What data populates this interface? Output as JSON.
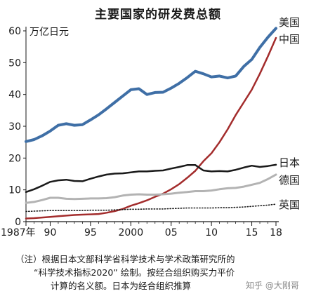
{
  "title": "主要国家的研发费总额",
  "note": {
    "line1": "（注）根据日本文部科学省科学技术与学术政策研究所的",
    "line2": "“科学技术指标2020” 绘制。按经合组织购买力平价",
    "line3": "计算的名义额。日本为经合组织推算"
  },
  "watermark": "知乎 @大刚哥",
  "chart_data": {
    "type": "line",
    "title": "主要国家的研发费总额",
    "ylabel": "万亿日元",
    "xlim": [
      1987,
      2018
    ],
    "ylim": [
      0,
      60
    ],
    "yticks": [
      0,
      10,
      20,
      30,
      40,
      50,
      60
    ],
    "xticks": [
      {
        "value": 1987,
        "label": "1987年"
      },
      {
        "value": 1990,
        "label": "90"
      },
      {
        "value": 1995,
        "label": "95"
      },
      {
        "value": 2000,
        "label": "2000"
      },
      {
        "value": 2005,
        "label": "05"
      },
      {
        "value": 2010,
        "label": "10"
      },
      {
        "value": 2015,
        "label": "15"
      },
      {
        "value": 2018,
        "label": "18"
      }
    ],
    "grid": false,
    "x": [
      1987,
      1988,
      1989,
      1990,
      1991,
      1992,
      1993,
      1994,
      1995,
      1996,
      1997,
      1998,
      1999,
      2000,
      2001,
      2002,
      2003,
      2004,
      2005,
      2006,
      2007,
      2008,
      2009,
      2010,
      2011,
      2012,
      2013,
      2014,
      2015,
      2016,
      2017,
      2018
    ],
    "series": [
      {
        "name": "美国",
        "color": "#3f6fa6",
        "style": "solid",
        "width": 4,
        "values": [
          25.2,
          25.8,
          27,
          28.5,
          30.3,
          30.8,
          30.3,
          30.5,
          32,
          33.6,
          35.5,
          37.5,
          39.5,
          41.5,
          41.8,
          40,
          40.6,
          40.7,
          42,
          43.5,
          45.3,
          47.3,
          46.5,
          45.5,
          45.8,
          45.2,
          45.8,
          48.8,
          51,
          54.8,
          58,
          60.8
        ]
      },
      {
        "name": "中国",
        "color": "#a32c2c",
        "style": "solid",
        "width": 2.5,
        "values": [
          1,
          1.1,
          1.3,
          1.5,
          1.7,
          1.9,
          2.1,
          2.2,
          2.3,
          2.4,
          2.8,
          3.3,
          4,
          5,
          5.8,
          6.7,
          7.8,
          8.8,
          10.2,
          11.8,
          13.8,
          16,
          19,
          21.5,
          25,
          29,
          33.5,
          37.5,
          41.5,
          46.5,
          52,
          57.8
        ]
      },
      {
        "name": "日本",
        "color": "#1a1a1a",
        "style": "solid",
        "width": 2.5,
        "values": [
          9.3,
          10.2,
          11.3,
          12.5,
          13,
          13.2,
          12.8,
          12.7,
          13.5,
          14.2,
          14.8,
          15.1,
          15.2,
          15.5,
          15.8,
          15.8,
          16,
          16.1,
          16.7,
          17.2,
          17.8,
          17.8,
          16.1,
          15.8,
          15.9,
          15.8,
          16.3,
          17,
          17.6,
          17.2,
          17.5,
          17.9
        ]
      },
      {
        "name": "德国",
        "color": "#b3b3b3",
        "style": "solid",
        "width": 3,
        "values": [
          5.9,
          6.2,
          6.8,
          7.5,
          7.5,
          7.2,
          7.1,
          7.2,
          7.3,
          7.3,
          7.4,
          7.7,
          8.2,
          8.5,
          8.6,
          8.5,
          8.5,
          8.6,
          8.8,
          9.1,
          9.3,
          9.6,
          9.6,
          9.8,
          10.2,
          10.5,
          10.6,
          11,
          11.6,
          12.2,
          13.4,
          14.8
        ]
      },
      {
        "name": "英国",
        "color": "#1a1a1a",
        "style": "dotted",
        "width": 1.6,
        "values": [
          3.2,
          3.3,
          3.4,
          3.5,
          3.5,
          3.5,
          3.5,
          3.5,
          3.6,
          3.6,
          3.6,
          3.7,
          3.8,
          3.9,
          3.9,
          4,
          4,
          4,
          4.1,
          4.2,
          4.3,
          4.3,
          4.3,
          4.3,
          4.4,
          4.4,
          4.5,
          4.6,
          4.8,
          5,
          5.2,
          5.5
        ]
      }
    ],
    "series_labels": [
      {
        "series": "美国",
        "text": "美国"
      },
      {
        "series": "中国",
        "text": "中国"
      },
      {
        "series": "日本",
        "text": "日本"
      },
      {
        "series": "德国",
        "text": "德国"
      },
      {
        "series": "英国",
        "text": "英国"
      }
    ]
  }
}
